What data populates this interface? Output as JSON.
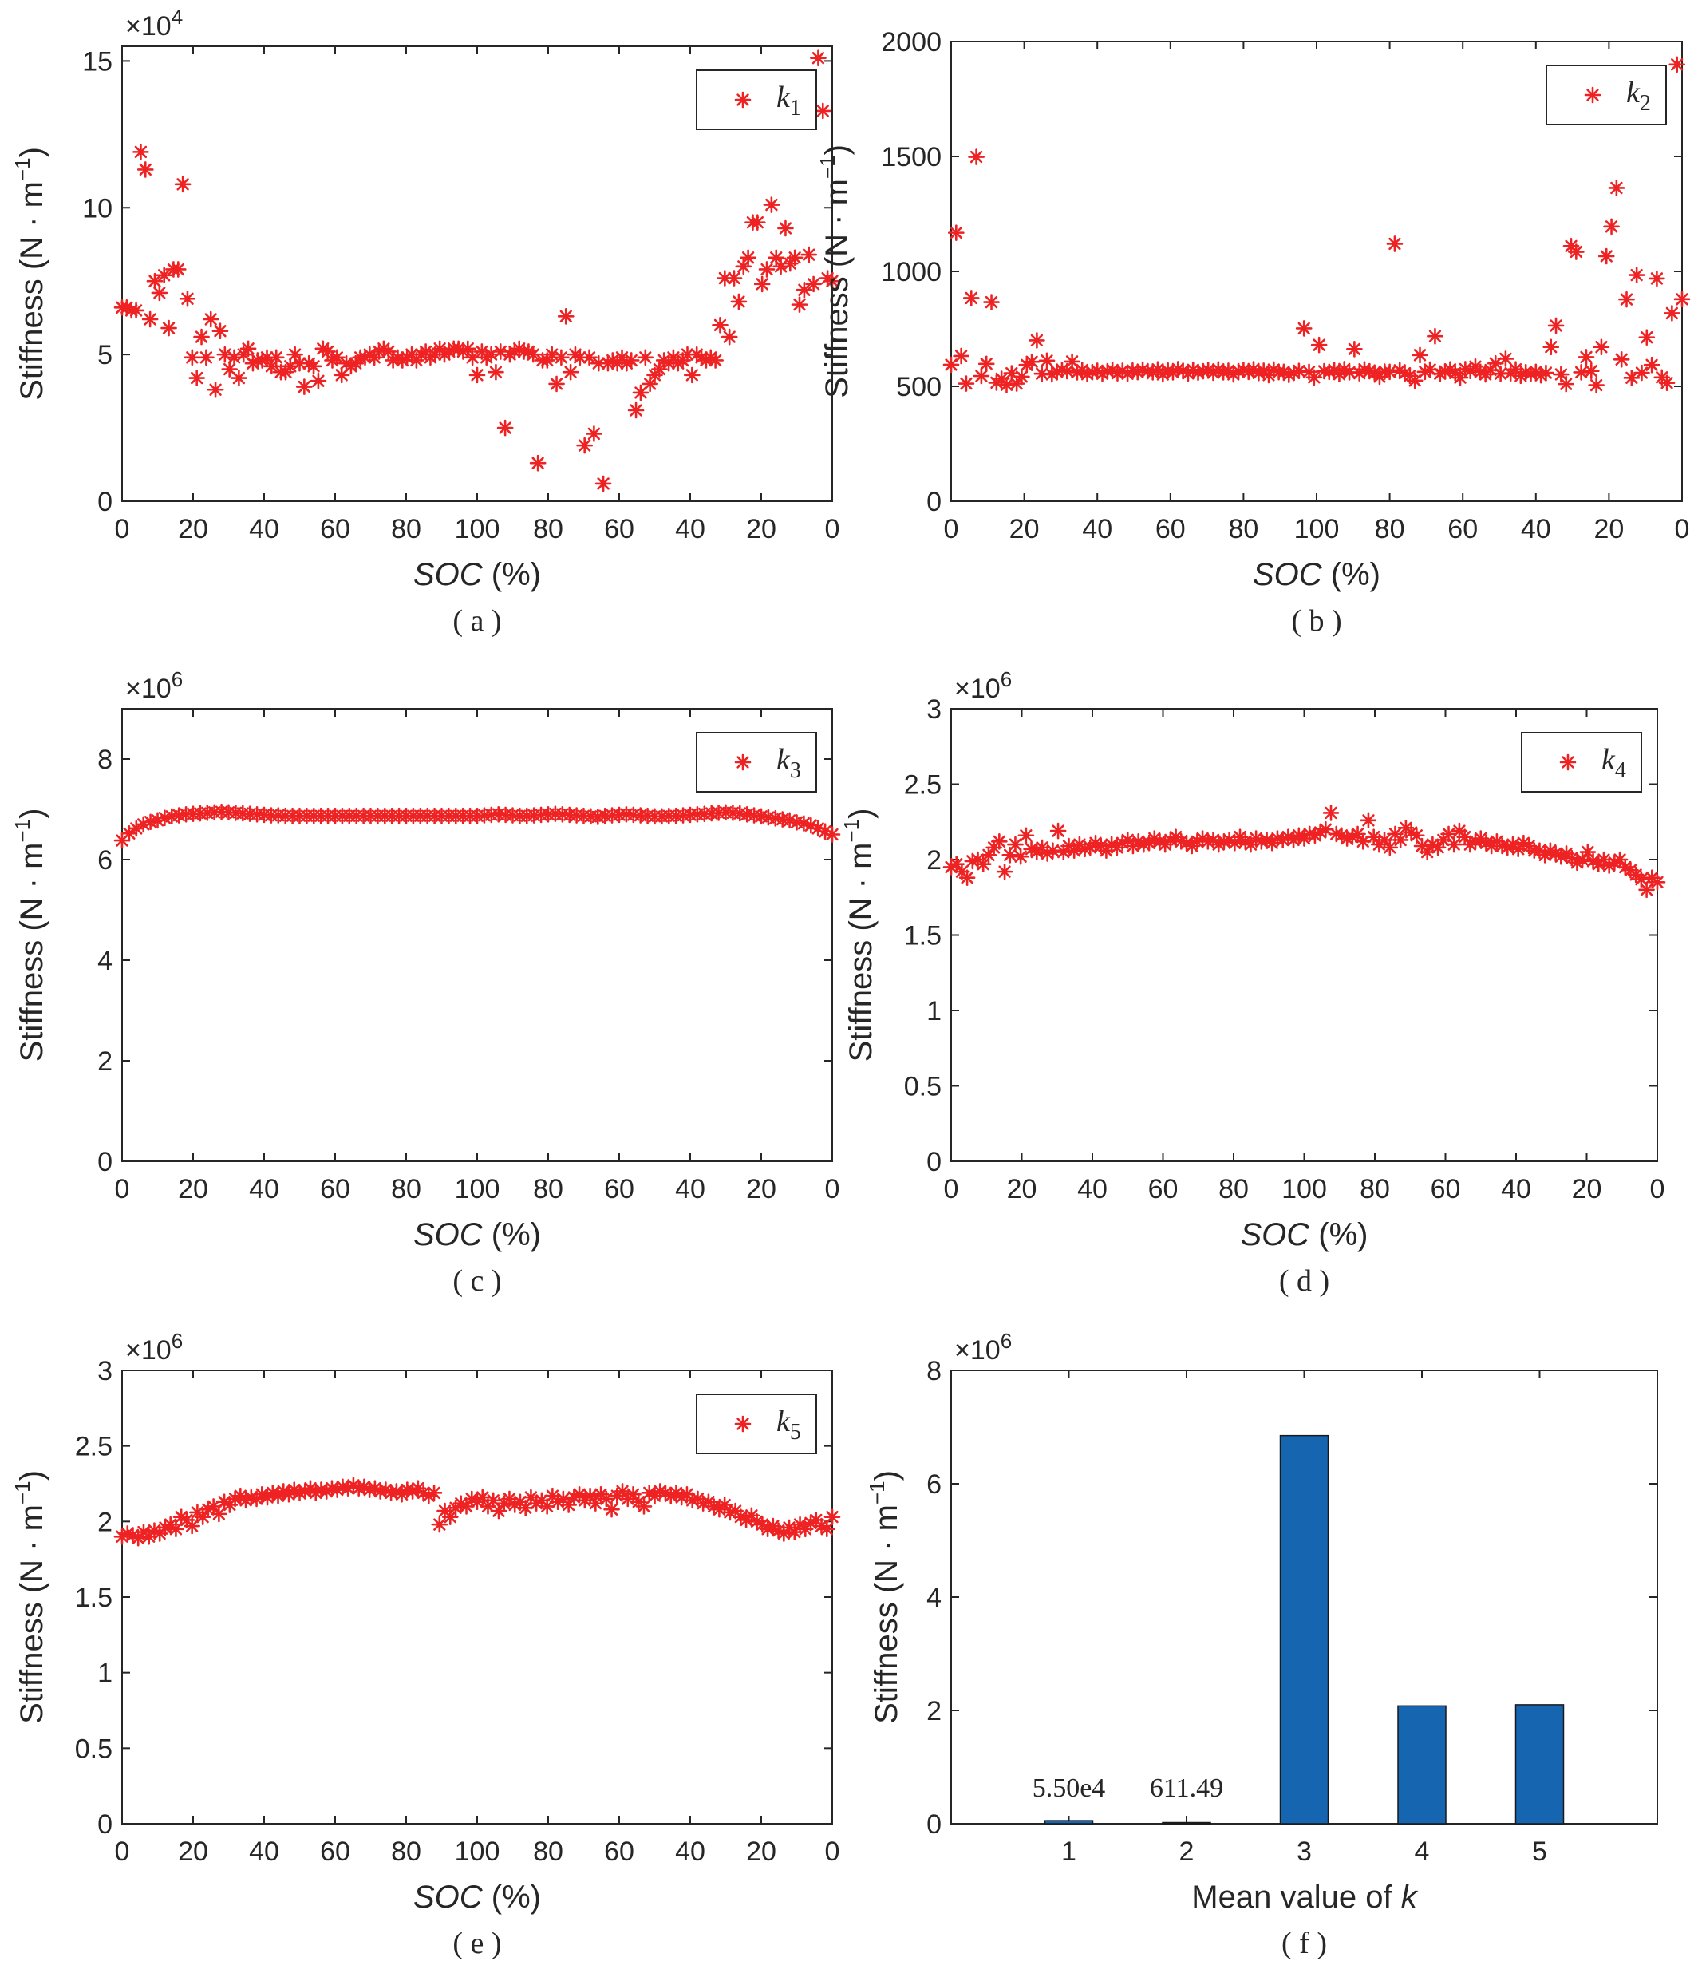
{
  "colors": {
    "marker": "#ee2222",
    "bar": "#1565b0",
    "axis": "#262626"
  },
  "chart_data": [
    {
      "id": "a",
      "type": "scatter",
      "caption": "( a )",
      "marker": "asterisk",
      "ylabel": "Stiffness (N · m",
      "ylabel_sup": "−1",
      "ylabel_close": ")",
      "xlabel_italic": "SOC",
      "xlabel_rest": " (%)",
      "exponent_base": "×10",
      "exponent_power": "4",
      "multiplier": 10000,
      "ylim": [
        0,
        15.5
      ],
      "yticks": [
        "0",
        "5",
        "10",
        "15"
      ],
      "ytick_values": [
        0,
        5,
        10,
        15
      ],
      "xlim": [
        0,
        200
      ],
      "xticks": [
        "0",
        "20",
        "40",
        "60",
        "80",
        "100",
        "80",
        "60",
        "40",
        "20",
        "0"
      ],
      "legend": {
        "base": "k",
        "sub": "1",
        "position": "top-right"
      },
      "y": [
        6.6,
        6.6,
        6.5,
        6.5,
        11.9,
        11.3,
        6.2,
        7.5,
        7.1,
        7.7,
        5.9,
        7.9,
        7.9,
        10.8,
        6.9,
        4.9,
        4.2,
        5.6,
        4.9,
        6.2,
        3.8,
        5.8,
        5.0,
        4.5,
        4.9,
        4.2,
        5.0,
        5.2,
        4.7,
        4.8,
        4.8,
        4.9,
        4.6,
        4.9,
        4.4,
        4.4,
        4.6,
        5.0,
        4.7,
        3.9,
        4.7,
        4.6,
        4.1,
        5.2,
        5.1,
        4.8,
        4.9,
        4.3,
        4.7,
        4.6,
        4.7,
        4.9,
        4.9,
        5.0,
        4.9,
        5.1,
        5.2,
        5.1,
        4.8,
        4.9,
        4.8,
        4.9,
        5.0,
        4.8,
        5.0,
        5.1,
        4.9,
        5.0,
        5.2,
        5.0,
        5.1,
        5.2,
        5.2,
        5.1,
        5.2,
        4.9,
        4.3,
        5.1,
        4.9,
        5.0,
        4.4,
        5.1,
        2.5,
        5.0,
        5.1,
        5.2,
        5.1,
        5.1,
        5.0,
        1.3,
        4.8,
        4.8,
        5.0,
        4.0,
        4.9,
        6.3,
        4.4,
        5.0,
        4.9,
        1.9,
        4.9,
        2.3,
        4.7,
        0.6,
        4.7,
        4.8,
        4.7,
        4.9,
        4.7,
        4.8,
        3.1,
        3.7,
        4.9,
        4.0,
        4.3,
        4.5,
        4.8,
        4.7,
        4.9,
        4.7,
        4.8,
        5.0,
        4.3,
        5.0,
        4.9,
        4.8,
        4.9,
        4.8,
        6.0,
        7.6,
        5.6,
        7.6,
        6.8,
        8.0,
        8.3,
        9.5,
        9.5,
        7.4,
        7.9,
        10.1,
        8.3,
        8.0,
        9.3,
        8.1,
        8.3,
        6.7,
        7.2,
        8.4,
        7.4,
        15.1,
        13.3,
        7.6,
        7.5
      ]
    },
    {
      "id": "b",
      "type": "scatter",
      "caption": "( b )",
      "marker": "asterisk",
      "ylabel": "Stiffness (N · m",
      "ylabel_sup": "−1",
      "ylabel_close": ")",
      "xlabel_italic": "SOC",
      "xlabel_rest": " (%)",
      "ylim": [
        0,
        2000
      ],
      "yticks": [
        "0",
        "500",
        "1000",
        "1500",
        "2000"
      ],
      "ytick_values": [
        0,
        500,
        1000,
        1500,
        2000
      ],
      "xlim": [
        0,
        200
      ],
      "xticks": [
        "0",
        "20",
        "40",
        "60",
        "80",
        "100",
        "80",
        "60",
        "40",
        "20",
        "0"
      ],
      "legend": {
        "base": "k",
        "sub": "2",
        "position": "top-right"
      },
      "y": [
        594,
        1168,
        632,
        512,
        884,
        1498,
        545,
        598,
        866,
        516,
        533,
        506,
        557,
        512,
        542,
        593,
        607,
        700,
        555,
        612,
        552,
        564,
        572,
        566,
        608,
        561,
        571,
        553,
        562,
        568,
        555,
        566,
        571,
        557,
        568,
        555,
        569,
        562,
        573,
        566,
        561,
        574,
        552,
        569,
        561,
        575,
        568,
        556,
        572,
        560,
        566,
        571,
        559,
        574,
        561,
        568,
        552,
        566,
        571,
        563,
        575,
        558,
        568,
        549,
        573,
        562,
        563,
        550,
        559,
        567,
        752,
        563,
        539,
        680,
        566,
        563,
        570,
        553,
        575,
        561,
        662,
        557,
        574,
        566,
        560,
        542,
        564,
        563,
        1120,
        570,
        557,
        546,
        525,
        636,
        563,
        573,
        718,
        555,
        565,
        574,
        558,
        538,
        575,
        567,
        586,
        563,
        552,
        571,
        600,
        555,
        620,
        557,
        574,
        546,
        562,
        555,
        563,
        548,
        559,
        671,
        764,
        552,
        510,
        1110,
        1085,
        561,
        627,
        567,
        505,
        671,
        1066,
        1195,
        1363,
        617,
        878,
        537,
        984,
        559,
        713,
        593,
        969,
        539,
        515,
        818,
        1900,
        879
      ]
    },
    {
      "id": "c",
      "type": "scatter",
      "caption": "( c )",
      "marker": "asterisk",
      "ylabel": "Stiffness (N · m",
      "ylabel_sup": "−1",
      "ylabel_close": ")",
      "xlabel_italic": "SOC",
      "xlabel_rest": " (%)",
      "exponent_base": "×10",
      "exponent_power": "6",
      "multiplier": 1000000,
      "ylim": [
        0,
        9
      ],
      "yticks": [
        "0",
        "2",
        "4",
        "6",
        "8"
      ],
      "ytick_values": [
        0,
        2,
        4,
        6,
        8
      ],
      "xlim": [
        0,
        200
      ],
      "xticks": [
        "0",
        "20",
        "40",
        "60",
        "80",
        "100",
        "80",
        "60",
        "40",
        "20",
        "0"
      ],
      "legend": {
        "base": "k",
        "sub": "3",
        "position": "top-right"
      },
      "y": [
        6.38,
        6.52,
        6.62,
        6.7,
        6.75,
        6.78,
        6.83,
        6.86,
        6.88,
        6.9,
        6.91,
        6.92,
        6.93,
        6.94,
        6.95,
        6.94,
        6.93,
        6.92,
        6.91,
        6.9,
        6.89,
        6.88,
        6.88,
        6.87,
        6.87,
        6.87,
        6.87,
        6.87,
        6.87,
        6.87,
        6.87,
        6.87,
        6.87,
        6.87,
        6.87,
        6.87,
        6.87,
        6.87,
        6.87,
        6.87,
        6.87,
        6.87,
        6.87,
        6.87,
        6.87,
        6.87,
        6.87,
        6.87,
        6.87,
        6.87,
        6.87,
        6.88,
        6.89,
        6.9,
        6.89,
        6.88,
        6.87,
        6.87,
        6.88,
        6.89,
        6.9,
        6.91,
        6.9,
        6.89,
        6.88,
        6.87,
        6.86,
        6.85,
        6.87,
        6.88,
        6.89,
        6.9,
        6.89,
        6.88,
        6.87,
        6.86,
        6.86,
        6.87,
        6.87,
        6.88,
        6.89,
        6.9,
        6.91,
        6.92,
        6.93,
        6.94,
        6.93,
        6.92,
        6.9,
        6.88,
        6.86,
        6.84,
        6.82,
        6.8,
        6.78,
        6.74,
        6.72,
        6.68,
        6.62,
        6.56,
        6.5
      ]
    },
    {
      "id": "d",
      "type": "scatter",
      "caption": "( d )",
      "marker": "asterisk",
      "ylabel": "Stiffness (N · m",
      "ylabel_sup": "−1",
      "ylabel_close": ")",
      "xlabel_italic": "SOC",
      "xlabel_rest": " (%)",
      "exponent_base": "×10",
      "exponent_power": "6",
      "multiplier": 1000000,
      "ylim": [
        0,
        3
      ],
      "yticks": [
        "0",
        "0.5",
        "1",
        "1.5",
        "2",
        "2.5",
        "3"
      ],
      "ytick_values": [
        0,
        0.5,
        1,
        1.5,
        2,
        2.5,
        3
      ],
      "xlim": [
        0,
        200
      ],
      "xticks": [
        "0",
        "20",
        "40",
        "60",
        "80",
        "100",
        "80",
        "60",
        "40",
        "20",
        "0"
      ],
      "legend": {
        "base": "k",
        "sub": "4",
        "position": "top-right"
      },
      "y": [
        1.95,
        1.97,
        1.92,
        1.88,
        1.99,
        2.0,
        1.97,
        2.03,
        2.08,
        2.12,
        1.92,
        2.03,
        2.1,
        2.02,
        2.16,
        2.07,
        2.05,
        2.08,
        2.04,
        2.06,
        2.19,
        2.05,
        2.09,
        2.06,
        2.1,
        2.07,
        2.08,
        2.11,
        2.09,
        2.06,
        2.1,
        2.08,
        2.11,
        2.13,
        2.09,
        2.12,
        2.1,
        2.11,
        2.14,
        2.12,
        2.1,
        2.13,
        2.15,
        2.12,
        2.11,
        2.09,
        2.12,
        2.14,
        2.12,
        2.13,
        2.1,
        2.12,
        2.13,
        2.11,
        2.15,
        2.12,
        2.1,
        2.14,
        2.12,
        2.13,
        2.11,
        2.14,
        2.13,
        2.15,
        2.13,
        2.16,
        2.14,
        2.17,
        2.16,
        2.18,
        2.2,
        2.31,
        2.17,
        2.16,
        2.14,
        2.15,
        2.17,
        2.12,
        2.26,
        2.15,
        2.1,
        2.13,
        2.08,
        2.17,
        2.13,
        2.21,
        2.18,
        2.16,
        2.09,
        2.05,
        2.1,
        2.08,
        2.13,
        2.17,
        2.1,
        2.19,
        2.15,
        2.1,
        2.12,
        2.14,
        2.11,
        2.09,
        2.12,
        2.09,
        2.08,
        2.1,
        2.07,
        2.11,
        2.09,
        2.06,
        2.06,
        2.03,
        2.06,
        2.04,
        2.02,
        2.04,
        2.01,
        1.98,
        2.0,
        2.05,
        1.99,
        1.97,
        2.0,
        1.96,
        1.98,
        2.0,
        1.95,
        1.93,
        1.9,
        1.87,
        1.8,
        1.88,
        1.85
      ]
    },
    {
      "id": "e",
      "type": "scatter",
      "caption": "( e )",
      "marker": "asterisk",
      "ylabel": "Stiffness (N · m",
      "ylabel_sup": "−1",
      "ylabel_close": ")",
      "xlabel_italic": "SOC",
      "xlabel_rest": " (%)",
      "exponent_base": "×10",
      "exponent_power": "6",
      "multiplier": 1000000,
      "ylim": [
        0,
        3
      ],
      "yticks": [
        "0",
        "0.5",
        "1",
        "1.5",
        "2",
        "2.5",
        "3"
      ],
      "ytick_values": [
        0,
        0.5,
        1,
        1.5,
        2,
        2.5,
        3
      ],
      "xlim": [
        0,
        200
      ],
      "xticks": [
        "0",
        "20",
        "40",
        "60",
        "80",
        "100",
        "80",
        "60",
        "40",
        "20",
        "0"
      ],
      "legend": {
        "base": "k",
        "sub": "5",
        "position": "top-right"
      },
      "y": [
        1.9,
        1.92,
        1.91,
        1.89,
        1.93,
        1.9,
        1.94,
        1.92,
        1.96,
        1.98,
        1.95,
        2.03,
        2.01,
        1.97,
        2.06,
        2.03,
        2.08,
        2.1,
        2.05,
        2.13,
        2.11,
        2.15,
        2.17,
        2.14,
        2.16,
        2.15,
        2.18,
        2.16,
        2.19,
        2.17,
        2.2,
        2.18,
        2.21,
        2.19,
        2.2,
        2.22,
        2.19,
        2.21,
        2.2,
        2.22,
        2.21,
        2.23,
        2.22,
        2.24,
        2.22,
        2.23,
        2.21,
        2.22,
        2.2,
        2.21,
        2.19,
        2.2,
        2.18,
        2.21,
        2.2,
        2.22,
        2.19,
        2.17,
        2.19,
        1.98,
        2.07,
        2.03,
        2.09,
        2.12,
        2.1,
        2.15,
        2.13,
        2.16,
        2.1,
        2.14,
        2.07,
        2.12,
        2.15,
        2.11,
        2.13,
        2.09,
        2.16,
        2.12,
        2.14,
        2.1,
        2.17,
        2.13,
        2.15,
        2.11,
        2.16,
        2.18,
        2.14,
        2.17,
        2.12,
        2.18,
        2.15,
        2.08,
        2.17,
        2.2,
        2.15,
        2.18,
        2.13,
        2.1,
        2.19,
        2.17,
        2.2,
        2.19,
        2.17,
        2.19,
        2.16,
        2.18,
        2.14,
        2.15,
        2.12,
        2.13,
        2.1,
        2.08,
        2.11,
        2.06,
        2.07,
        2.03,
        2.01,
        2.04,
        2.0,
        1.98,
        1.95,
        1.97,
        1.94,
        1.92,
        1.96,
        1.93,
        1.98,
        1.95,
        1.99,
        2.01,
        1.97,
        1.95,
        2.03
      ]
    },
    {
      "id": "f",
      "type": "bar",
      "caption": "( f )",
      "ylabel": "Stiffness (N · m",
      "ylabel_sup": "−1",
      "ylabel_close": ")",
      "xlabel_plain": "Mean value of ",
      "xlabel_italic_end": "k",
      "exponent_base": "×10",
      "exponent_power": "6",
      "multiplier": 1000000,
      "ylim": [
        0,
        8
      ],
      "yticks": [
        "0",
        "2",
        "4",
        "6",
        "8"
      ],
      "ytick_values": [
        0,
        2,
        4,
        6,
        8
      ],
      "categories": [
        "1",
        "2",
        "3",
        "4",
        "5"
      ],
      "values": [
        0.055,
        0.00061149,
        6.85,
        2.08,
        2.1
      ],
      "data_labels": [
        "5.50e4",
        "611.49",
        "",
        "",
        ""
      ]
    }
  ]
}
